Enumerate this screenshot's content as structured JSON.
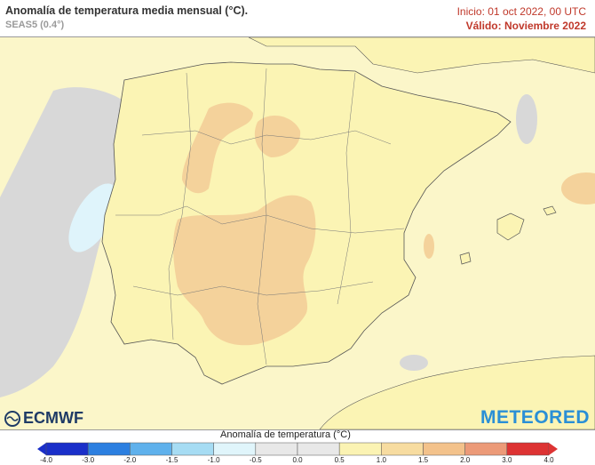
{
  "header": {
    "title": "Anomalía de temperatura media mensual (°C).",
    "subtitle": "SEAS5 (0.4°)",
    "init": "Inicio: 01 oct 2022, 00 UTC",
    "valid": "Válido: Noviembre 2022"
  },
  "branding": {
    "left_logo": "ECMWF",
    "right_logo": "METEORED"
  },
  "legend": {
    "title": "Anomalía de temperatura (°C)",
    "ticks": [
      "-4.0",
      "-3.0",
      "-2.0",
      "-1.5",
      "-1.0",
      "-0.5",
      "0.0",
      "0.5",
      "1.0",
      "1.5",
      "2.0",
      "3.0",
      "4.0"
    ],
    "colors": [
      "#1a2fc9",
      "#2c7fe0",
      "#5fb1ec",
      "#a6dcf3",
      "#e0f5fb",
      "#e8e8e8",
      "#e8e8e8",
      "#fbf3b3",
      "#f7dca0",
      "#f3c28b",
      "#ec9a78",
      "#dd3333"
    ]
  },
  "colors": {
    "sea": "#fbf6c9",
    "land": "#fbf4b4",
    "warm": "#f4d29b",
    "gray": "#d8d8d8",
    "cyan": "#dff4fb"
  }
}
